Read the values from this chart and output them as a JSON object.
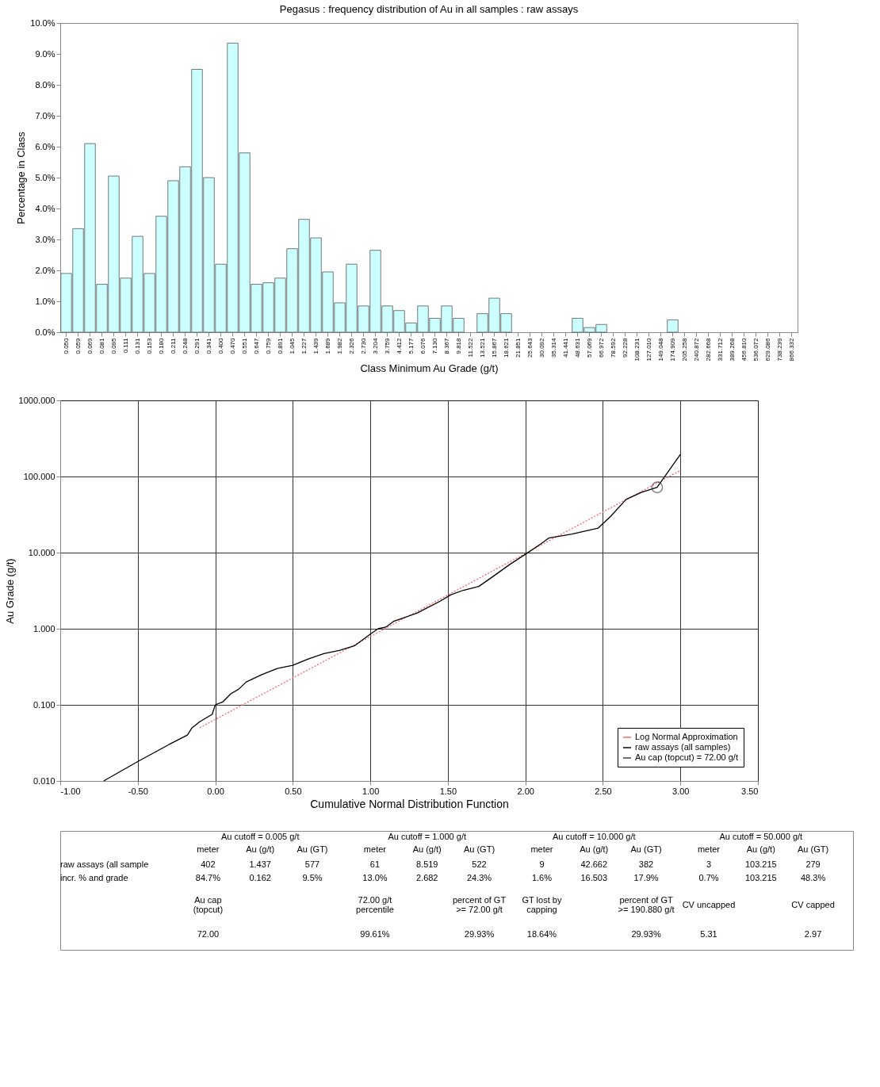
{
  "chart_data": [
    {
      "type": "bar",
      "title": "Pegasus  :  frequency distribution of Au in all samples  :  raw assays",
      "xlabel": "Class Minimum Au Grade (g/t)",
      "ylabel": "Percentage in Class",
      "categories": [
        "0.050",
        "0.059",
        "0.069",
        "0.081",
        "0.095",
        "0.111",
        "0.131",
        "0.153",
        "0.180",
        "0.211",
        "0.248",
        "0.291",
        "0.341",
        "0.400",
        "0.470",
        "0.551",
        "0.647",
        "0.759",
        "0.891",
        "1.045",
        "1.227",
        "1.439",
        "1.689",
        "1.982",
        "2.326",
        "2.730",
        "3.204",
        "3.759",
        "4.412",
        "5.177",
        "6.076",
        "7.130",
        "8.367",
        "9.818",
        "11.522",
        "13.521",
        "15.867",
        "18.621",
        "21.851",
        "25.643",
        "30.092",
        "35.314",
        "41.441",
        "48.631",
        "57.069",
        "66.972",
        "78.592",
        "92.228",
        "108.231",
        "127.010",
        "149.048",
        "174.909",
        "205.258",
        "240.872",
        "282.668",
        "331.712",
        "389.268",
        "456.810",
        "536.072",
        "629.086",
        "738.239",
        "866.332"
      ],
      "values": [
        1.9,
        3.35,
        6.1,
        1.55,
        5.05,
        1.75,
        3.1,
        1.9,
        3.75,
        4.9,
        5.35,
        8.5,
        5.0,
        2.2,
        9.35,
        5.8,
        1.55,
        1.6,
        1.75,
        2.7,
        3.65,
        3.05,
        1.95,
        0.95,
        2.2,
        0.85,
        2.65,
        0.85,
        0.7,
        0.3,
        0.85,
        0.45,
        0.85,
        0.45,
        0,
        0.6,
        1.1,
        0.6,
        0,
        0,
        0,
        0,
        0,
        0.45,
        0.15,
        0.25,
        0,
        0,
        0,
        0,
        0,
        0.4,
        0,
        0,
        0,
        0,
        0,
        0,
        0,
        0,
        0,
        0
      ],
      "color": "#ccffff",
      "ylim": [
        0,
        10
      ],
      "yticks": [
        {
          "value": 0,
          "label": "0.0%"
        },
        {
          "value": 1,
          "label": "1.0%"
        },
        {
          "value": 2,
          "label": "2.0%"
        },
        {
          "value": 3,
          "label": "3.0%"
        },
        {
          "value": 4,
          "label": "4.0%"
        },
        {
          "value": 5,
          "label": "5.0%"
        },
        {
          "value": 6,
          "label": "6.0%"
        },
        {
          "value": 7,
          "label": "7.0%"
        },
        {
          "value": 8,
          "label": "8.0%"
        },
        {
          "value": 9,
          "label": "9.0%"
        },
        {
          "value": 10,
          "label": "10.0%"
        }
      ],
      "grid": false
    },
    {
      "type": "line",
      "xlabel": "Cumulative Normal Distribution Function",
      "ylabel": "Au Grade (g/t)",
      "log": "y",
      "grid": true,
      "legend": "bottom right",
      "xlim": [
        -1,
        3.5
      ],
      "xticks": [
        {
          "value": -1,
          "label": "-1.00"
        },
        {
          "value": -0.5,
          "label": "-0.50"
        },
        {
          "value": 0,
          "label": "0.00"
        },
        {
          "value": 0.5,
          "label": "0.50"
        },
        {
          "value": 1,
          "label": "1.00"
        },
        {
          "value": 1.5,
          "label": "1.50"
        },
        {
          "value": 2,
          "label": "2.00"
        },
        {
          "value": 2.5,
          "label": "2.50"
        },
        {
          "value": 3,
          "label": "3.00"
        },
        {
          "value": 3.5,
          "label": "3.50"
        }
      ],
      "ylim": [
        0.01,
        1000
      ],
      "yticks": [
        {
          "value": 0.01,
          "label": "0.010"
        },
        {
          "value": 0.1,
          "label": "0.100"
        },
        {
          "value": 1,
          "label": "1.000"
        },
        {
          "value": 10,
          "label": "10.000"
        },
        {
          "value": 100,
          "label": "100.000"
        },
        {
          "value": 1000,
          "label": "1000.000"
        }
      ],
      "series": [
        {
          "name": "Log Normal Approximation",
          "type": "line",
          "line_style": "dotted",
          "color": "#ff6666",
          "x": [
            -0.1,
            3.0
          ],
          "values": [
            0.05,
            120
          ]
        },
        {
          "name": "raw assays (all samples)",
          "type": "line",
          "line_style": "solid",
          "color": "#000000",
          "x": [
            -0.72,
            -0.5,
            -0.3,
            -0.18,
            -0.15,
            -0.1,
            -0.02,
            0.0,
            0.05,
            0.1,
            0.15,
            0.2,
            0.3,
            0.4,
            0.5,
            0.6,
            0.7,
            0.8,
            0.9,
            1.0,
            1.05,
            1.1,
            1.15,
            1.3,
            1.45,
            1.52,
            1.6,
            1.7,
            1.8,
            1.9,
            2.0,
            2.1,
            2.15,
            2.3,
            2.47,
            2.55,
            2.65,
            2.75,
            2.85,
            3.0
          ],
          "values": [
            0.01,
            0.018,
            0.03,
            0.04,
            0.05,
            0.06,
            0.075,
            0.1,
            0.11,
            0.14,
            0.16,
            0.2,
            0.25,
            0.3,
            0.33,
            0.4,
            0.47,
            0.52,
            0.6,
            0.85,
            1.0,
            1.05,
            1.25,
            1.6,
            2.3,
            2.8,
            3.2,
            3.6,
            5,
            7,
            9.5,
            13,
            15.5,
            17.5,
            21,
            30,
            50,
            62,
            72,
            195
          ]
        },
        {
          "name": "Au cap (topcut) = 72.00 g/t",
          "type": "scatter",
          "marker": "circle",
          "color": "#404040",
          "x": [
            2.85
          ],
          "values": [
            72
          ]
        }
      ]
    },
    {
      "type": "other",
      "annotations": [
        "Au cutoff = 0.005 g/t",
        "Au cutoff = 1.000 g/t",
        "Au cutoff = 10.000 g/t",
        "Au cutoff = 50.000 g/t",
        "meter",
        "Au (g/t)",
        "Au (GT)",
        "meter",
        "Au (g/t)",
        "Au (GT)",
        "meter",
        "Au (g/t)",
        "Au (GT)",
        "meter",
        "Au (g/t)",
        "Au (GT)",
        "raw assays (all sample",
        "402",
        "1.437",
        "577",
        "61",
        "8.519",
        "522",
        "9",
        "42.662",
        "382",
        "3",
        "103.215",
        "279",
        "incr. % and grade",
        "84.7%",
        "0.162",
        "9.5%",
        "13.0%",
        "2.682",
        "24.3%",
        "1.6%",
        "16.503",
        "17.9%",
        "0.7%",
        "103.215",
        "48.3%",
        "Au cap (topcut)",
        "72.00 g/t percentile",
        "percent of GT >= 72.00 g/t",
        "GT lost by capping",
        "percent of GT >= 190.880 g/t",
        "CV uncapped",
        "CV capped",
        "72.00",
        "99.61%",
        "29.93%",
        "18.64%",
        "29.93%",
        "5.31",
        "2.97"
      ]
    }
  ]
}
